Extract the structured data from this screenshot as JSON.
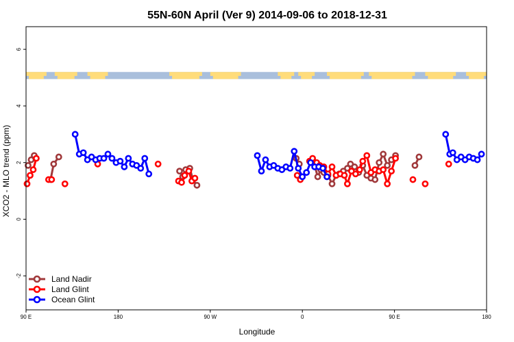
{
  "chart_data": {
    "type": "line",
    "title": "55N-60N April (Ver 9)   2014-09-06 to 2018-12-31",
    "xlabel": "Longitude",
    "ylabel": "XCO2 - MLO trend (ppm)",
    "x_axis": {
      "range": [
        90,
        450
      ],
      "ticks": [
        {
          "value": 90,
          "label": "90 E"
        },
        {
          "value": 180,
          "label": "180"
        },
        {
          "value": 270,
          "label": "90 W"
        },
        {
          "value": 360,
          "label": "0"
        },
        {
          "value": 450,
          "label": "90 E"
        },
        {
          "value": 540,
          "label": "180"
        }
      ]
    },
    "x_range_data": [
      90,
      540
    ],
    "ylim": [
      -3.2,
      6.8
    ],
    "y_ticks": [
      -2,
      0,
      2,
      4,
      6
    ],
    "grid": false,
    "legend_position": "bottom-left",
    "map_strip": {
      "y_range": [
        4.95,
        5.2
      ],
      "land_color": "#ffdc7a",
      "ocean_color": "#a9bfdc"
    },
    "series": [
      {
        "name": "Land Nadir",
        "color": "#a0393b",
        "segments": [
          [
            [
              92,
              1.9
            ],
            [
              95,
              2.1
            ],
            [
              98,
              2.25
            ]
          ],
          [
            [
              114,
              1.4
            ],
            [
              117,
              1.95
            ],
            [
              122,
              2.2
            ]
          ],
          [
            [
              240,
              1.7
            ],
            [
              243,
              1.5
            ],
            [
              246,
              1.75
            ],
            [
              250,
              1.8
            ],
            [
              253,
              1.4
            ],
            [
              257,
              1.2
            ]
          ],
          [
            [
              354,
              2.15
            ],
            [
              357,
              1.95
            ]
          ],
          [
            [
              372,
              1.9
            ],
            [
              375,
              1.5
            ],
            [
              378,
              1.75
            ],
            [
              381,
              1.65
            ],
            [
              385,
              1.55
            ],
            [
              389,
              1.25
            ],
            [
              393,
              1.55
            ],
            [
              396,
              1.6
            ],
            [
              400,
              1.7
            ],
            [
              404,
              1.8
            ],
            [
              407,
              1.95
            ],
            [
              411,
              1.85
            ],
            [
              415,
              1.65
            ],
            [
              419,
              1.9
            ],
            [
              423,
              1.55
            ],
            [
              427,
              1.45
            ],
            [
              431,
              1.4
            ],
            [
              435,
              2.0
            ],
            [
              439,
              2.3
            ],
            [
              443,
              1.9
            ],
            [
              447,
              2.1
            ],
            [
              451,
              2.25
            ]
          ],
          [
            [
              470,
              1.9
            ],
            [
              474,
              2.2
            ]
          ]
        ]
      },
      {
        "name": "Land Glint",
        "color": "#ff0000",
        "segments": [
          [
            [
              91,
              1.25
            ],
            [
              94,
              1.55
            ],
            [
              97,
              1.75
            ],
            [
              100,
              2.15
            ]
          ],
          [
            [
              112,
              1.4
            ],
            [
              115,
              1.4
            ]
          ],
          [
            [
              128,
              1.25
            ]
          ],
          [
            [
              160,
              1.95
            ]
          ],
          [
            [
              219,
              1.95
            ]
          ],
          [
            [
              239,
              1.35
            ],
            [
              242,
              1.3
            ],
            [
              245,
              1.55
            ],
            [
              249,
              1.7
            ],
            [
              252,
              1.35
            ],
            [
              255,
              1.45
            ]
          ],
          [
            [
              355,
              1.55
            ],
            [
              358,
              1.4
            ]
          ],
          [
            [
              367,
              2.05
            ],
            [
              370,
              2.15
            ],
            [
              374,
              2.0
            ],
            [
              377,
              1.9
            ],
            [
              381,
              1.85
            ],
            [
              385,
              1.6
            ],
            [
              389,
              1.85
            ],
            [
              393,
              1.55
            ],
            [
              397,
              1.6
            ],
            [
              401,
              1.55
            ],
            [
              404,
              1.25
            ],
            [
              408,
              1.7
            ],
            [
              412,
              1.6
            ],
            [
              416,
              1.75
            ],
            [
              419,
              2.05
            ],
            [
              423,
              2.25
            ],
            [
              427,
              1.65
            ],
            [
              431,
              1.75
            ],
            [
              435,
              1.7
            ],
            [
              439,
              1.75
            ],
            [
              443,
              1.25
            ],
            [
              447,
              1.7
            ],
            [
              451,
              2.15
            ]
          ],
          [
            [
              468,
              1.4
            ]
          ],
          [
            [
              480,
              1.25
            ]
          ],
          [
            [
              503,
              1.95
            ]
          ]
        ]
      },
      {
        "name": "Ocean Glint",
        "color": "#0000ff",
        "segments": [
          [
            [
              138,
              3.0
            ],
            [
              142,
              2.3
            ],
            [
              146,
              2.35
            ],
            [
              150,
              2.1
            ],
            [
              154,
              2.2
            ],
            [
              158,
              2.1
            ],
            [
              162,
              2.15
            ],
            [
              166,
              2.15
            ],
            [
              170,
              2.3
            ],
            [
              174,
              2.15
            ],
            [
              178,
              2.0
            ],
            [
              182,
              2.05
            ],
            [
              186,
              1.85
            ],
            [
              190,
              2.15
            ],
            [
              194,
              1.95
            ],
            [
              198,
              1.9
            ],
            [
              202,
              1.8
            ],
            [
              206,
              2.15
            ],
            [
              210,
              1.6
            ]
          ],
          [
            [
              316,
              2.25
            ],
            [
              320,
              1.7
            ],
            [
              324,
              2.1
            ],
            [
              328,
              1.85
            ],
            [
              332,
              1.9
            ],
            [
              336,
              1.8
            ],
            [
              340,
              1.75
            ],
            [
              344,
              1.85
            ],
            [
              348,
              1.8
            ],
            [
              352,
              2.4
            ],
            [
              356,
              1.8
            ],
            [
              360,
              1.5
            ],
            [
              364,
              1.65
            ],
            [
              368,
              2.0
            ],
            [
              372,
              1.85
            ],
            [
              376,
              1.85
            ],
            [
              380,
              1.8
            ],
            [
              384,
              1.5
            ]
          ],
          [
            [
              500,
              3.0
            ],
            [
              504,
              2.3
            ],
            [
              507,
              2.35
            ],
            [
              511,
              2.1
            ],
            [
              515,
              2.2
            ],
            [
              519,
              2.1
            ],
            [
              523,
              2.2
            ],
            [
              527,
              2.15
            ],
            [
              531,
              2.1
            ],
            [
              535,
              2.3
            ]
          ]
        ]
      }
    ]
  }
}
